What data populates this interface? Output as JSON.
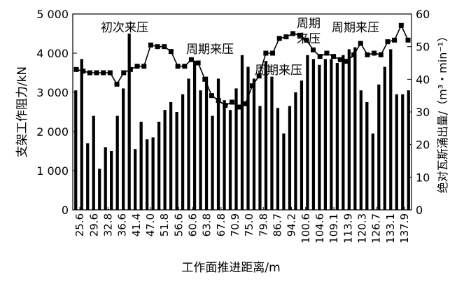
{
  "chart_data": {
    "type": "bar+line",
    "xlabel": "工作面推进距离/m",
    "ylabel_left": "支架工作阻力/kN",
    "ylabel_right": "绝对瓦斯涌出量/（m³・min⁻¹）",
    "ylim_left": [
      0,
      5000
    ],
    "yticks_left": [
      "0",
      "1 000",
      "2 000",
      "3 000",
      "4 000",
      "5 000"
    ],
    "ylim_right": [
      0,
      60
    ],
    "yticks_right": [
      "0",
      "10",
      "20",
      "30",
      "40",
      "50",
      "60"
    ],
    "grid": false,
    "x_tick_labels": [
      "25.6",
      "29.6",
      "32.8",
      "36.6",
      "41.4",
      "47.0",
      "51.8",
      "56.6",
      "60.6",
      "63.8",
      "67.8",
      "70.9",
      "75.0",
      "79.8",
      "86.7",
      "94.2",
      "100.6",
      "104.6",
      "109.1",
      "113.9",
      "120.3",
      "126.7",
      "133.1",
      "137.9"
    ],
    "bars_series": {
      "name": "支架工作阻力",
      "values": [
        3050,
        3850,
        1700,
        2400,
        1050,
        1600,
        1500,
        2400,
        3100,
        4500,
        1550,
        2250,
        1800,
        1850,
        2250,
        2550,
        2750,
        2500,
        2950,
        3350,
        3800,
        3050,
        3400,
        2400,
        3350,
        2800,
        2550,
        3100,
        3950,
        3650,
        3350,
        2650,
        3800,
        3400,
        2600,
        1950,
        2650,
        3000,
        3300,
        3950,
        3850,
        3700,
        3850,
        3850,
        3750,
        3950,
        4100,
        4150,
        3050,
        2750,
        1950,
        3200,
        3650,
        4100,
        2950,
        2950,
        3050
      ]
    },
    "line_series": {
      "name": "绝对瓦斯涌出量",
      "values": [
        43,
        42.5,
        42,
        42,
        42,
        42,
        38.5,
        42,
        43,
        44,
        44,
        50.5,
        50,
        50,
        48.5,
        44,
        44,
        46,
        45,
        40,
        35,
        33.5,
        32,
        33,
        31.5,
        32.5,
        38,
        41,
        48,
        48,
        52.5,
        53,
        54,
        53.5,
        52,
        49,
        47,
        48,
        47,
        46,
        45.5,
        47.5,
        51,
        47.5,
        48,
        47.5,
        51.5,
        52,
        56.5,
        52
      ]
    },
    "annotations": [
      "初次来压",
      "周期来压",
      "周期来压",
      "周期\n来压",
      "周期来压"
    ]
  }
}
